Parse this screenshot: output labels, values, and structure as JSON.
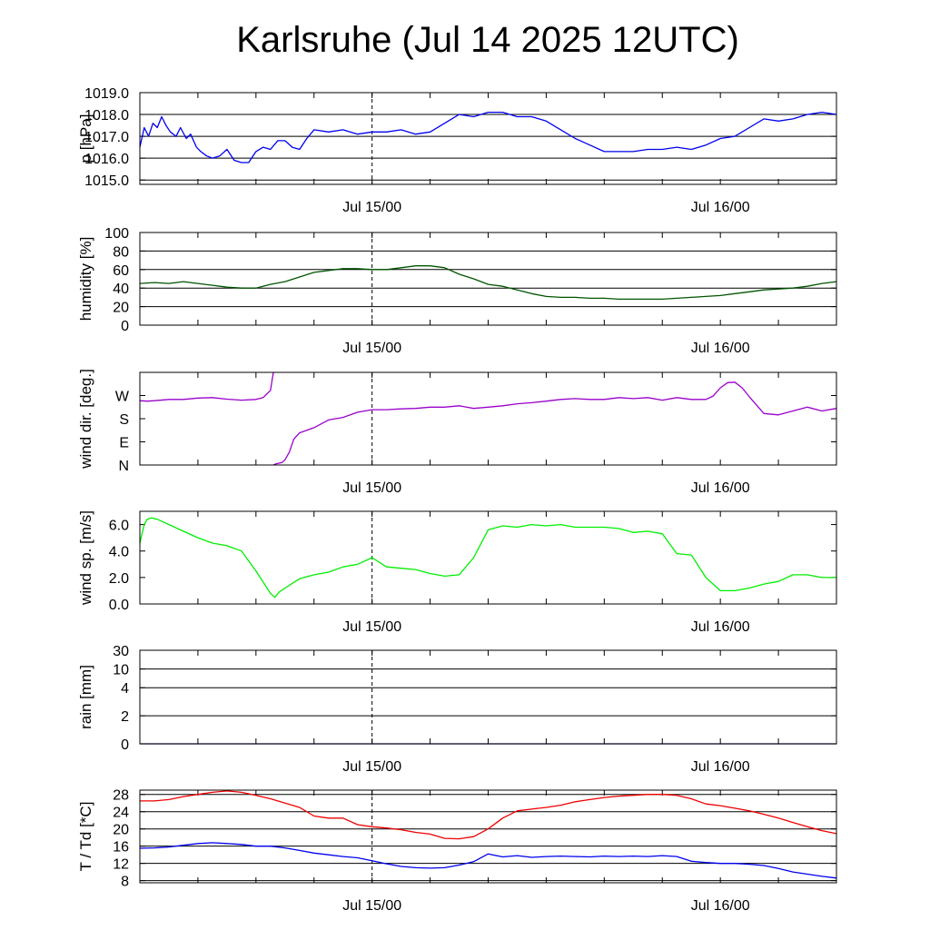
{
  "title": "Karlsruhe (Jul 14 2025 12UTC)",
  "x_tick_labels": [
    "Jul 15/00",
    "Jul 16/00"
  ],
  "chart_data": [
    {
      "type": "line",
      "ylabel": "p [hPa]",
      "ylim": [
        1014.8,
        1019.0
      ],
      "yticks": [
        1015.0,
        1016.0,
        1017.0,
        1018.0,
        1019.0
      ],
      "ytick_labels": [
        "1015.0",
        "1016.0",
        "1017.0",
        "1018.0",
        "1019.0"
      ],
      "grid": true,
      "series": [
        {
          "color": "#0000ee",
          "x": [
            0,
            0.3,
            0.6,
            0.9,
            1.2,
            1.5,
            1.8,
            2.1,
            2.5,
            2.8,
            3.2,
            3.5,
            3.9,
            4.2,
            4.6,
            5,
            5.5,
            6,
            6.5,
            7,
            7.5,
            8,
            8.5,
            9,
            9.5,
            10,
            10.5,
            11,
            11.5,
            12,
            13,
            14,
            15,
            16,
            17,
            18,
            19,
            20,
            21,
            22,
            23,
            24,
            25,
            26,
            27,
            28,
            29,
            30,
            31,
            32,
            33,
            34,
            35,
            36,
            37,
            38,
            39,
            40,
            41,
            42,
            43,
            44,
            45,
            46,
            47,
            48
          ],
          "y": [
            1016.5,
            1017.4,
            1017.0,
            1017.6,
            1017.4,
            1017.9,
            1017.5,
            1017.2,
            1017.0,
            1017.4,
            1016.9,
            1017.1,
            1016.5,
            1016.3,
            1016.1,
            1016.0,
            1016.1,
            1016.4,
            1015.9,
            1015.8,
            1015.8,
            1016.3,
            1016.5,
            1016.4,
            1016.8,
            1016.8,
            1016.5,
            1016.4,
            1016.9,
            1017.3,
            1017.2,
            1017.3,
            1017.1,
            1017.2,
            1017.2,
            1017.3,
            1017.1,
            1017.2,
            1017.6,
            1018.0,
            1017.9,
            1018.1,
            1018.1,
            1017.9,
            1017.9,
            1017.7,
            1017.3,
            1016.9,
            1016.6,
            1016.3,
            1016.3,
            1016.3,
            1016.4,
            1016.4,
            1016.5,
            1016.4,
            1016.6,
            1016.9,
            1017.0,
            1017.4,
            1017.8,
            1017.7,
            1017.8,
            1018.0,
            1018.1,
            1018.0
          ]
        }
      ]
    },
    {
      "type": "line",
      "ylabel": "humidity [%]",
      "ylim": [
        0,
        100
      ],
      "yticks": [
        0,
        20,
        40,
        60,
        80,
        100
      ],
      "ytick_labels": [
        "0",
        "20",
        "40",
        "60",
        "80",
        "100"
      ],
      "grid": true,
      "series": [
        {
          "color": "#005500",
          "x": [
            0,
            1,
            2,
            3,
            4,
            5,
            6,
            7,
            8,
            9,
            10,
            11,
            12,
            13,
            14,
            15,
            16,
            17,
            18,
            19,
            20,
            21,
            22,
            23,
            24,
            25,
            26,
            27,
            28,
            29,
            30,
            31,
            32,
            33,
            34,
            35,
            36,
            37,
            38,
            39,
            40,
            41,
            42,
            43,
            44,
            45,
            46,
            47,
            48
          ],
          "y": [
            45,
            46,
            45,
            47,
            45,
            43,
            41,
            40,
            40,
            44,
            47,
            52,
            57,
            59,
            61,
            61,
            60,
            60,
            62,
            64,
            64,
            62,
            55,
            50,
            44,
            42,
            38,
            34,
            31,
            30,
            30,
            29,
            29,
            28,
            28,
            28,
            28,
            29,
            30,
            31,
            32,
            34,
            36,
            38,
            39,
            40,
            42,
            45,
            47
          ]
        }
      ]
    },
    {
      "type": "line",
      "ylabel": "wind dir. [deg.]",
      "ylim": [
        0,
        360
      ],
      "yticks": [
        0,
        90,
        180,
        270
      ],
      "ytick_labels": [
        "N",
        "E",
        "S",
        "W"
      ],
      "grid": false,
      "series": [
        {
          "color": "#9900cc",
          "x": [
            0,
            0.5,
            1,
            2,
            3,
            4,
            5,
            6,
            7,
            8,
            8.5,
            9,
            9.2
          ],
          "y": [
            250,
            248,
            250,
            255,
            255,
            260,
            262,
            256,
            252,
            255,
            262,
            290,
            360
          ]
        },
        {
          "color": "#9900cc",
          "x": [
            9.2,
            9.4,
            9.8,
            10,
            10.3,
            10.6,
            11,
            11.5,
            12,
            12.5,
            13,
            14,
            15,
            16,
            17,
            18,
            19,
            20,
            21,
            22,
            23,
            24,
            25,
            26,
            27,
            28,
            29,
            30,
            31,
            32,
            33,
            34,
            35,
            36,
            37,
            38,
            39,
            39.5,
            40,
            40.5,
            41,
            41.5,
            42,
            43,
            44,
            45,
            46,
            47,
            48
          ],
          "y": [
            0,
            5,
            10,
            20,
            50,
            100,
            125,
            135,
            145,
            160,
            175,
            185,
            205,
            215,
            215,
            218,
            220,
            225,
            225,
            230,
            220,
            225,
            230,
            238,
            242,
            248,
            255,
            258,
            255,
            255,
            262,
            258,
            262,
            252,
            262,
            255,
            255,
            268,
            300,
            320,
            322,
            300,
            265,
            200,
            195,
            210,
            225,
            210,
            220
          ]
        }
      ]
    },
    {
      "type": "line",
      "ylabel": "wind sp. [m/s]",
      "ylim": [
        0,
        7
      ],
      "yticks": [
        0,
        2,
        4,
        6
      ],
      "ytick_labels": [
        "0.0",
        "2.0",
        "4.0",
        "6.0"
      ],
      "grid": false,
      "series": [
        {
          "color": "#00ee00",
          "x": [
            0,
            0.3,
            0.5,
            0.8,
            1.2,
            1.6,
            2,
            3,
            4,
            5,
            6,
            7,
            8,
            9,
            9.3,
            9.6,
            10,
            11,
            12,
            13,
            14,
            15,
            16,
            17,
            18,
            19,
            20,
            21,
            22,
            23,
            24,
            25,
            26,
            27,
            28,
            29,
            30,
            31,
            32,
            33,
            34,
            35,
            36,
            37,
            38,
            39,
            40,
            41,
            42,
            43,
            44,
            45,
            46,
            47,
            48
          ],
          "y": [
            4.6,
            6.0,
            6.4,
            6.5,
            6.4,
            6.2,
            6.0,
            5.5,
            5.0,
            4.6,
            4.4,
            4.0,
            2.5,
            0.8,
            0.5,
            0.9,
            1.2,
            1.9,
            2.2,
            2.4,
            2.8,
            3.0,
            3.5,
            2.8,
            2.7,
            2.6,
            2.3,
            2.1,
            2.2,
            3.5,
            5.6,
            5.9,
            5.8,
            6.0,
            5.9,
            6.0,
            5.8,
            5.8,
            5.8,
            5.7,
            5.4,
            5.5,
            5.3,
            3.8,
            3.7,
            2.0,
            1.0,
            1.0,
            1.2,
            1.5,
            1.7,
            2.2,
            2.2,
            2.0,
            2.0
          ]
        }
      ]
    },
    {
      "type": "line",
      "ylabel": "rain [mm]",
      "ylim": [
        0,
        30
      ],
      "yticks": [
        0,
        2,
        4,
        10,
        30
      ],
      "ytick_labels": [
        "0",
        "2",
        "4",
        "10",
        "30"
      ],
      "scale": "nonlinear",
      "grid": true,
      "series": [
        {
          "color": "#000080",
          "x": [
            0,
            48
          ],
          "y": [
            0,
            0
          ]
        }
      ]
    },
    {
      "type": "line",
      "ylabel": "T / Td [*C]",
      "ylim": [
        7.5,
        29
      ],
      "yticks": [
        8,
        12,
        16,
        20,
        24,
        28
      ],
      "ytick_labels": [
        "8",
        "12",
        "16",
        "20",
        "24",
        "28"
      ],
      "grid": true,
      "series": [
        {
          "color": "#ee0000",
          "x": [
            0,
            1,
            2,
            3,
            4,
            5,
            6,
            7,
            8,
            9,
            10,
            11,
            12,
            13,
            14,
            15,
            16,
            17,
            18,
            19,
            20,
            21,
            22,
            23,
            24,
            25,
            26,
            27,
            28,
            29,
            30,
            31,
            32,
            33,
            34,
            35,
            36,
            37,
            38,
            39,
            40,
            41,
            42,
            43,
            44,
            45,
            46,
            47,
            48
          ],
          "y": [
            26.5,
            26.5,
            26.8,
            27.5,
            28.0,
            28.5,
            28.8,
            28.5,
            27.8,
            27.0,
            26.0,
            25.0,
            23.0,
            22.5,
            22.5,
            21.0,
            20.5,
            20.2,
            19.8,
            19.2,
            18.8,
            17.8,
            17.7,
            18.2,
            20.0,
            22.5,
            24.2,
            24.6,
            25.0,
            25.5,
            26.3,
            26.8,
            27.3,
            27.6,
            27.8,
            28.0,
            28.0,
            27.8,
            27.0,
            25.8,
            25.4,
            24.8,
            24.2,
            23.4,
            22.5,
            21.5,
            20.5,
            19.6,
            18.9
          ]
        },
        {
          "color": "#0000ee",
          "x": [
            0,
            1,
            2,
            3,
            4,
            5,
            6,
            7,
            8,
            9,
            10,
            11,
            12,
            13,
            14,
            15,
            16,
            17,
            18,
            19,
            20,
            21,
            22,
            23,
            24,
            25,
            26,
            27,
            28,
            29,
            30,
            31,
            32,
            33,
            34,
            35,
            36,
            37,
            38,
            39,
            40,
            41,
            42,
            43,
            44,
            45,
            46,
            47,
            48
          ],
          "y": [
            15.5,
            15.6,
            15.8,
            16.2,
            16.6,
            16.8,
            16.6,
            16.4,
            16.0,
            16.0,
            15.6,
            15.0,
            14.4,
            14.0,
            13.6,
            13.3,
            12.6,
            11.9,
            11.3,
            11.0,
            10.9,
            11.0,
            11.6,
            12.4,
            14.2,
            13.5,
            13.8,
            13.4,
            13.6,
            13.7,
            13.6,
            13.5,
            13.7,
            13.6,
            13.7,
            13.6,
            13.8,
            13.6,
            12.5,
            12.2,
            12.0,
            12.0,
            11.8,
            11.5,
            10.8,
            10.0,
            9.5,
            9.0,
            8.6
          ]
        }
      ]
    }
  ]
}
